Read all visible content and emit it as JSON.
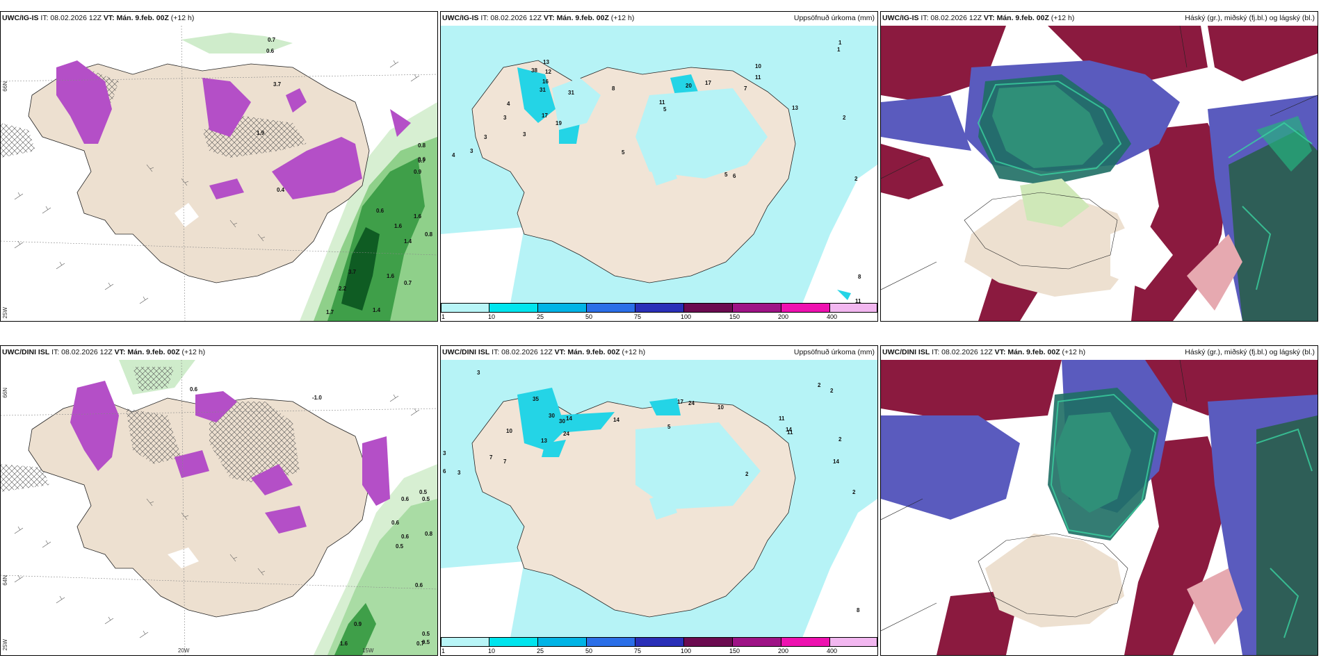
{
  "panels": {
    "p1": {
      "model": "UWC/IG-IS",
      "it": "IT: 08.02.2026 12Z",
      "vt_label": "VT:",
      "vt": "Mán. 9.feb. 00Z",
      "lead": "(+12 h)",
      "right": ""
    },
    "p2": {
      "model": "UWC/IG-IS",
      "it": "IT: 08.02.2026 12Z",
      "vt_label": "VT:",
      "vt": "Mán. 9.feb. 00Z",
      "lead": "(+12 h)",
      "right": "Uppsöfnuð úrkoma (mm)"
    },
    "p3": {
      "model": "UWC/IG-IS",
      "it": "IT: 08.02.2026 12Z",
      "vt_label": "VT:",
      "vt": "Mán. 9.feb. 00Z",
      "lead": "(+12 h)",
      "right": "Háský (gr.), miðský (fj.bl.) og lágský (bl.)"
    },
    "p4": {
      "model": "UWC/DINI ISL",
      "it": "IT: 08.02.2026 12Z",
      "vt_label": "VT:",
      "vt": "Mán. 9.feb. 00Z",
      "lead": "(+12 h)",
      "right": ""
    },
    "p5": {
      "model": "UWC/DINI ISL",
      "it": "IT: 08.02.2026 12Z",
      "vt_label": "VT:",
      "vt": "Mán. 9.feb. 00Z",
      "lead": "(+12 h)",
      "right": "Uppsöfnuð úrkoma (mm)"
    },
    "p6": {
      "model": "UWC/DINI ISL",
      "it": "IT: 08.02.2026 12Z",
      "vt_label": "VT:",
      "vt": "Mán. 9.feb. 00Z",
      "lead": "(+12 h)",
      "right": "Háský (gr.), miðský (fj.bl.) og lágský (bl.)"
    }
  },
  "axes": {
    "lon_20": "20W",
    "lon_15": "15W",
    "lon_25": "25W",
    "lat_66": "66N",
    "lat_64": "64N"
  },
  "colorbar": {
    "ticks": [
      "1",
      "10",
      "25",
      "50",
      "75",
      "100",
      "150",
      "200",
      "400"
    ],
    "colors": [
      "#b8f5f7",
      "#00e5ee",
      "#00b4e6",
      "#2b6fe8",
      "#2a2fb8",
      "#6b0b50",
      "#9e1386",
      "#ee11b0",
      "#f2b7f0"
    ]
  },
  "precip_values_top": [
    "3",
    "3",
    "2",
    "10",
    "11",
    "1",
    "38",
    "13",
    "12",
    "31",
    "31",
    "16",
    "4",
    "17",
    "19",
    "8",
    "17",
    "20",
    "5",
    "11",
    "7",
    "3",
    "3",
    "4",
    "5",
    "5",
    "6",
    "8",
    "2",
    "13",
    "11",
    "1"
  ],
  "precip_values_bottom": [
    "3",
    "3",
    "14",
    "35",
    "30",
    "30",
    "24",
    "13",
    "10",
    "7",
    "14",
    "17",
    "24",
    "10",
    "5",
    "3",
    "6",
    "7",
    "2",
    "8",
    "11",
    "11",
    "14",
    "2",
    "2",
    "2",
    "14",
    "2"
  ],
  "wind_values_top": [
    "0.7",
    "0.6",
    "3.7",
    "1.9",
    "0.4",
    "0.6",
    "0.8",
    "0.6",
    "0.7",
    "0.9",
    "1.6",
    "1.6",
    "0.8",
    "1.4",
    "3.7",
    "2.2",
    "1.7",
    "1.4",
    "0.7",
    "1.6"
  ],
  "wind_values_bottom": [
    "0.6",
    "-1.0",
    "0.5",
    "0.6",
    "0.5",
    "0.6",
    "0.8",
    "0.6",
    "0.5",
    "0.5",
    "0.7",
    "0.9",
    "1.6",
    "0.5",
    "0.6"
  ]
}
